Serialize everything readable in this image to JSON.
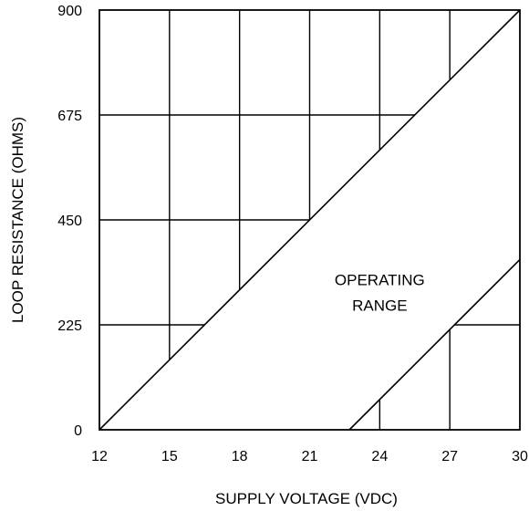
{
  "chart_data": {
    "type": "line",
    "title": "",
    "xlabel": "SUPPLY VOLTAGE (VDC)",
    "ylabel": "LOOP RESISTANCE (OHMS)",
    "xlim": [
      12,
      30
    ],
    "ylim": [
      0,
      900
    ],
    "xticks": [
      "12",
      "15",
      "18",
      "21",
      "24",
      "27",
      "30"
    ],
    "yticks": [
      "0",
      "225",
      "450",
      "675",
      "900"
    ],
    "grid": true,
    "series": [
      {
        "x": [
          12,
          30
        ],
        "y": [
          0,
          900
        ]
      },
      {
        "x": [
          22.7,
          30
        ],
        "y": [
          0,
          365
        ]
      }
    ],
    "annotations": [
      {
        "text": "OPERATING",
        "x": 24.0,
        "y": 310
      },
      {
        "text": "RANGE",
        "x": 24.0,
        "y": 255
      }
    ],
    "fill_region": {
      "label": "OPERATING RANGE",
      "between_series": [
        0,
        1
      ],
      "color": "#ffffff"
    }
  }
}
